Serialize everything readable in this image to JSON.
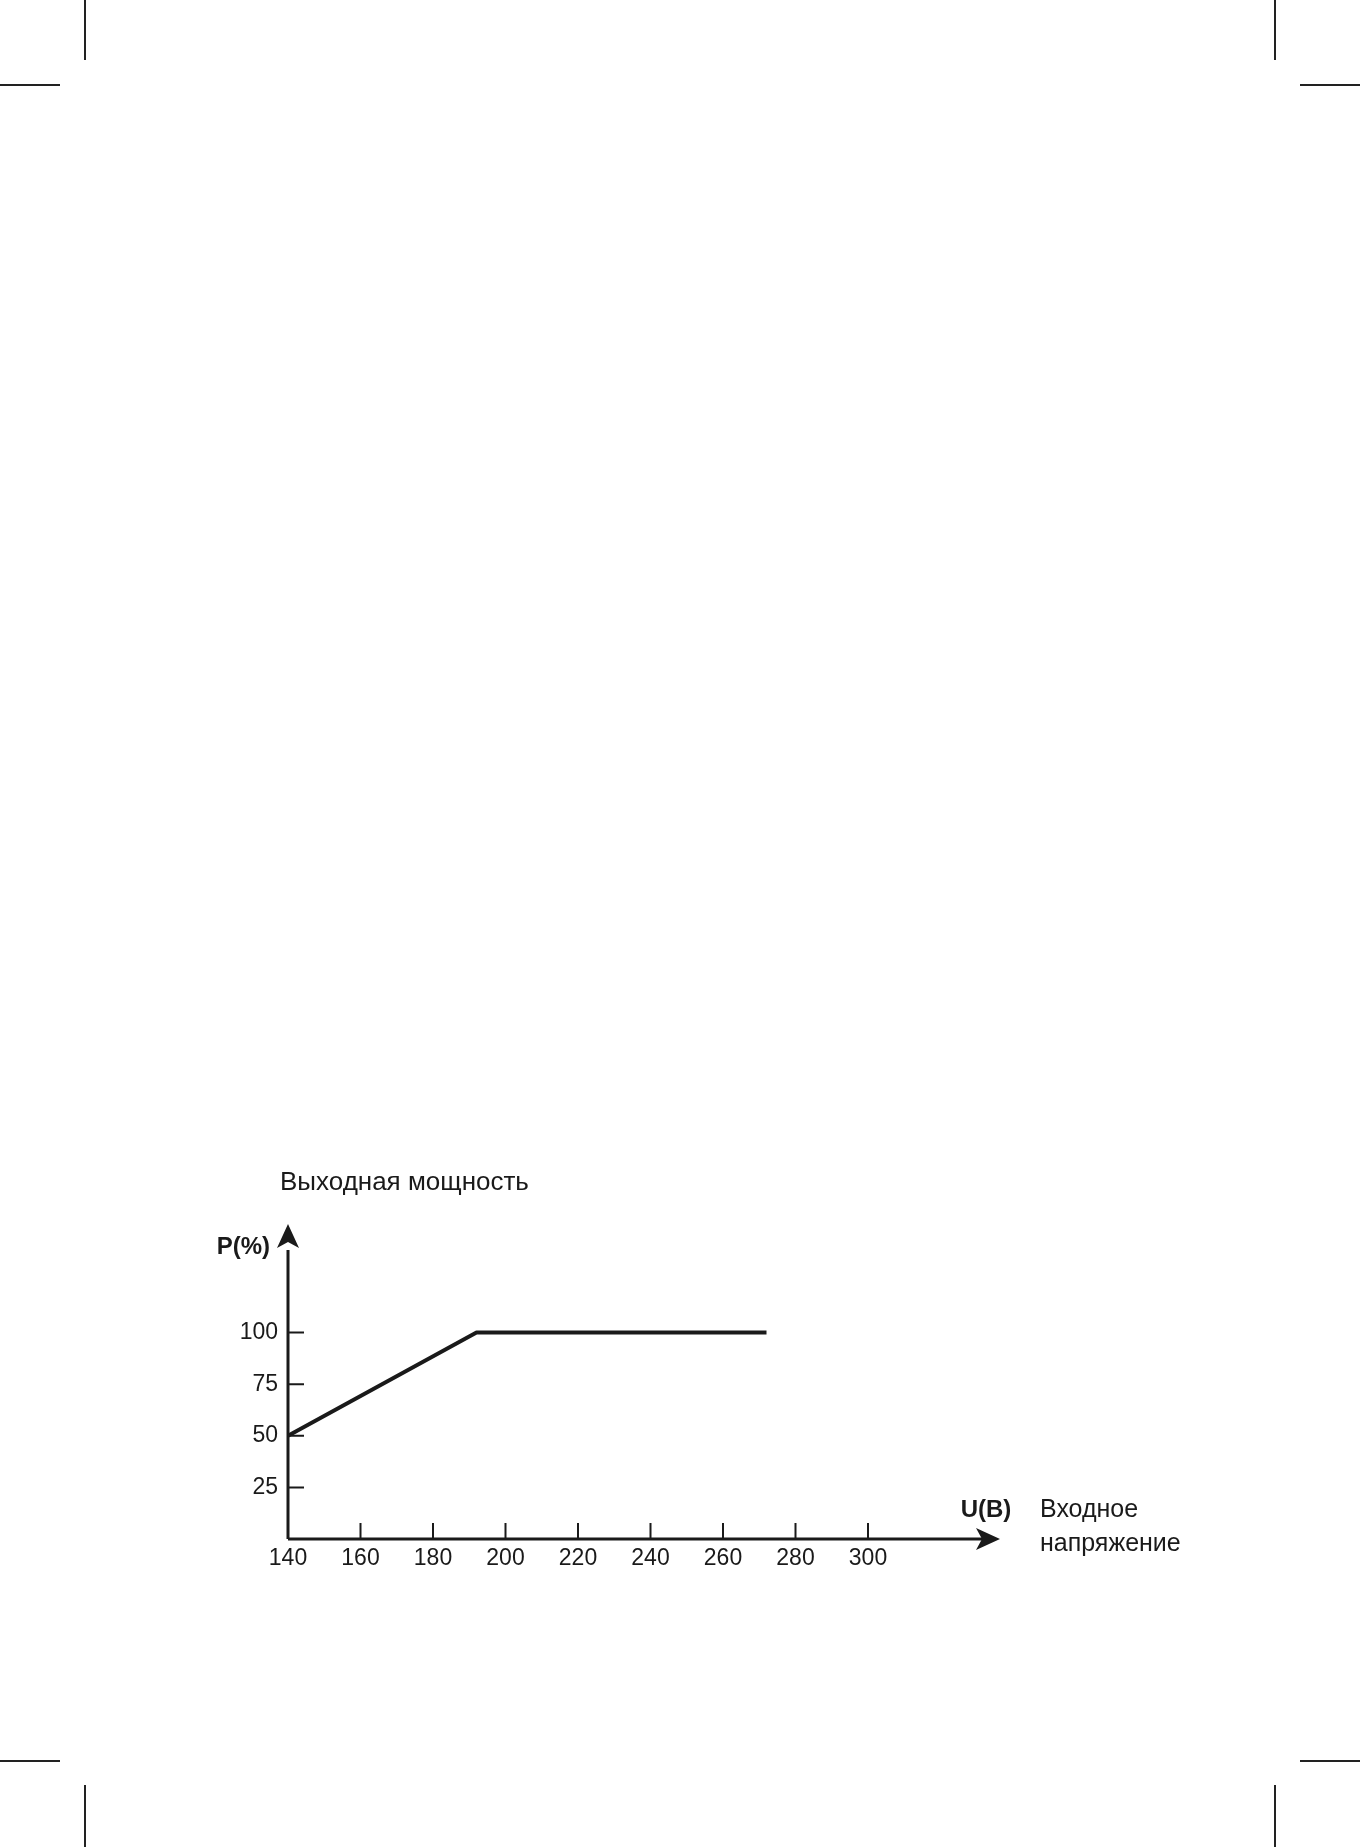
{
  "chart_data": {
    "type": "line",
    "title": "Выходная мощность",
    "ylabel": "P(%)",
    "xlabel": "U(B)",
    "annotations": [
      "Входное\nнапряжение"
    ],
    "x": [
      140,
      192,
      272
    ],
    "series": [
      {
        "color": "#1a1a1a",
        "values": [
          50,
          100,
          100
        ]
      }
    ],
    "xlim": [
      140,
      332
    ],
    "xticks": [
      140,
      160,
      180,
      200,
      220,
      240,
      260,
      280,
      300
    ],
    "ylim": [
      0,
      140
    ],
    "yticks": [
      25,
      50,
      75,
      100
    ],
    "grid": false,
    "legend": false,
    "marker": "none",
    "line_style": "solid"
  }
}
